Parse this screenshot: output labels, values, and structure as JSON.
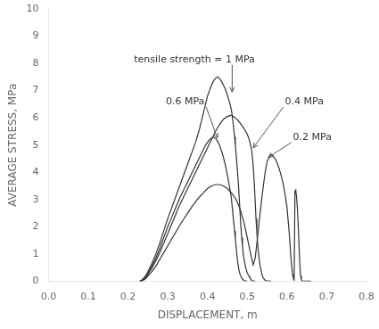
{
  "chart_data": {
    "type": "line",
    "xlabel": "DISPLACEMENT, m",
    "ylabel": "AVERAGE STRESS, MPa",
    "xlim": [
      0.0,
      0.8
    ],
    "ylim": [
      0.0,
      10.0
    ],
    "xticks": [
      {
        "value": 0.0,
        "label": "0.0"
      },
      0.1,
      0.2,
      0.3,
      0.4,
      0.5,
      0.6,
      0.7,
      0.8
    ],
    "yticks": [
      0,
      1,
      2,
      3,
      4,
      5,
      6,
      7,
      8,
      9,
      10
    ],
    "grid": false,
    "series": [
      {
        "color": "#333333",
        "x": [
          0.23,
          0.235,
          0.24,
          0.245,
          0.25,
          0.26,
          0.27,
          0.28,
          0.29,
          0.3,
          0.31,
          0.32,
          0.33,
          0.34,
          0.35,
          0.36,
          0.37,
          0.375,
          0.38,
          0.385,
          0.39,
          0.395,
          0.4,
          0.405,
          0.41,
          0.415,
          0.42,
          0.425,
          0.43,
          0.435,
          0.44,
          0.445,
          0.455,
          0.46,
          0.462,
          0.464,
          0.466,
          0.468,
          0.47,
          0.472,
          0.474,
          0.476,
          0.478,
          0.48,
          0.482,
          0.484,
          0.486,
          0.488,
          0.49,
          0.492,
          0.494,
          0.496,
          0.498,
          0.5,
          0.502,
          0.504,
          0.506,
          0.508,
          0.51,
          0.512,
          0.514,
          0.516,
          0.518,
          0.52
        ],
        "values": [
          0.0,
          0.05,
          0.12,
          0.22,
          0.35,
          0.65,
          1.0,
          1.4,
          1.85,
          2.3,
          2.7,
          3.1,
          3.5,
          3.9,
          4.3,
          4.7,
          5.1,
          5.35,
          5.6,
          5.9,
          6.2,
          6.5,
          6.8,
          7.0,
          7.2,
          7.35,
          7.45,
          7.5,
          7.45,
          7.35,
          7.2,
          7.05,
          6.6,
          6.3,
          6.1,
          5.85,
          5.6,
          5.3,
          5.0,
          4.65,
          4.3,
          3.9,
          3.5,
          3.0,
          2.5,
          2.0,
          1.6,
          1.3,
          1.0,
          0.8,
          0.65,
          0.5,
          0.4,
          0.3,
          0.25,
          0.2,
          0.15,
          0.1,
          0.05,
          0.02,
          0.01,
          0.005,
          0.002,
          0.0
        ]
      },
      {
        "color": "#333333",
        "x": [
          0.23,
          0.235,
          0.24,
          0.245,
          0.25,
          0.26,
          0.27,
          0.28,
          0.29,
          0.3,
          0.31,
          0.32,
          0.33,
          0.34,
          0.35,
          0.36,
          0.37,
          0.375,
          0.38,
          0.385,
          0.39,
          0.395,
          0.4,
          0.405,
          0.41,
          0.415,
          0.42,
          0.425,
          0.43,
          0.435,
          0.44,
          0.445,
          0.45,
          0.455,
          0.46,
          0.462,
          0.464,
          0.466,
          0.468,
          0.47,
          0.472,
          0.474,
          0.476,
          0.478,
          0.48,
          0.482,
          0.484,
          0.486,
          0.488,
          0.49,
          0.492,
          0.494,
          0.496,
          0.498,
          0.5
        ],
        "values": [
          0.0,
          0.04,
          0.1,
          0.18,
          0.3,
          0.55,
          0.85,
          1.2,
          1.6,
          2.0,
          2.35,
          2.7,
          3.05,
          3.35,
          3.65,
          3.95,
          4.25,
          4.4,
          4.55,
          4.7,
          4.85,
          5.0,
          5.1,
          5.2,
          5.25,
          5.3,
          5.25,
          5.15,
          5.0,
          4.8,
          4.55,
          4.25,
          3.9,
          3.5,
          3.05,
          2.75,
          2.45,
          2.15,
          1.85,
          1.55,
          1.25,
          0.95,
          0.7,
          0.5,
          0.35,
          0.25,
          0.18,
          0.12,
          0.08,
          0.05,
          0.03,
          0.01,
          0.005,
          0.002,
          0.0
        ]
      },
      {
        "color": "#333333",
        "x": [
          0.23,
          0.235,
          0.24,
          0.245,
          0.25,
          0.26,
          0.27,
          0.28,
          0.29,
          0.3,
          0.31,
          0.32,
          0.33,
          0.34,
          0.35,
          0.36,
          0.37,
          0.375,
          0.38,
          0.39,
          0.4,
          0.41,
          0.42,
          0.43,
          0.44,
          0.45,
          0.46,
          0.47,
          0.48,
          0.49,
          0.5,
          0.505,
          0.51,
          0.512,
          0.514,
          0.516,
          0.518,
          0.52,
          0.522,
          0.524,
          0.526,
          0.528,
          0.53,
          0.532,
          0.534,
          0.536,
          0.538,
          0.54,
          0.542,
          0.544,
          0.546,
          0.548,
          0.55,
          0.552,
          0.554,
          0.556,
          0.558,
          0.56
        ],
        "values": [
          0.0,
          0.03,
          0.08,
          0.15,
          0.25,
          0.48,
          0.75,
          1.05,
          1.4,
          1.75,
          2.1,
          2.45,
          2.8,
          3.1,
          3.4,
          3.7,
          4.0,
          4.15,
          4.3,
          4.6,
          4.9,
          5.2,
          5.5,
          5.75,
          5.95,
          6.05,
          6.1,
          6.0,
          5.85,
          5.65,
          5.4,
          5.2,
          4.9,
          4.7,
          4.4,
          4.0,
          3.5,
          2.9,
          2.3,
          1.8,
          1.4,
          1.1,
          0.8,
          0.6,
          0.45,
          0.3,
          0.2,
          0.12,
          0.08,
          0.05,
          0.03,
          0.02,
          0.01,
          0.008,
          0.005,
          0.002,
          0.001,
          0.0
        ]
      },
      {
        "color": "#333333",
        "x": [
          0.23,
          0.235,
          0.24,
          0.245,
          0.25,
          0.26,
          0.27,
          0.28,
          0.29,
          0.3,
          0.31,
          0.32,
          0.33,
          0.34,
          0.35,
          0.36,
          0.37,
          0.38,
          0.39,
          0.4,
          0.41,
          0.42,
          0.43,
          0.44,
          0.45,
          0.46,
          0.47,
          0.475,
          0.48,
          0.485,
          0.49,
          0.495,
          0.5,
          0.505,
          0.51,
          0.515,
          0.52,
          0.525,
          0.53,
          0.535,
          0.54,
          0.545,
          0.55,
          0.555,
          0.56,
          0.565,
          0.57,
          0.575,
          0.58,
          0.585,
          0.59,
          0.595,
          0.6,
          0.603,
          0.606,
          0.608,
          0.61,
          0.612,
          0.614,
          0.616,
          0.618,
          0.62,
          0.622,
          0.624,
          0.626,
          0.628,
          0.63,
          0.632,
          0.634,
          0.636,
          0.638,
          0.64,
          0.645,
          0.65,
          0.655,
          0.66
        ],
        "values": [
          0.0,
          0.02,
          0.05,
          0.1,
          0.18,
          0.35,
          0.55,
          0.8,
          1.05,
          1.3,
          1.55,
          1.8,
          2.05,
          2.28,
          2.5,
          2.72,
          2.92,
          3.1,
          3.25,
          3.4,
          3.5,
          3.55,
          3.55,
          3.5,
          3.4,
          3.25,
          3.05,
          2.9,
          2.72,
          2.5,
          2.25,
          1.95,
          1.6,
          1.25,
          0.9,
          0.6,
          0.85,
          1.5,
          2.2,
          2.85,
          3.45,
          4.0,
          4.4,
          4.55,
          4.65,
          4.6,
          4.5,
          4.35,
          4.15,
          3.9,
          3.6,
          3.2,
          2.7,
          2.2,
          1.7,
          1.25,
          0.85,
          0.5,
          0.25,
          0.1,
          0.05,
          3.3,
          3.35,
          3.1,
          2.7,
          2.1,
          1.4,
          0.7,
          0.2,
          0.05,
          0.01,
          0.0,
          0.0,
          0.0,
          0.0,
          0.0
        ]
      }
    ],
    "annotations": [
      {
        "text": "tensile strength = 1 MPa",
        "x": 0.462,
        "y": 6.95,
        "text_x": 0.215,
        "text_y": 8.05,
        "color": "#333333"
      },
      {
        "text": "0.6 MPa",
        "x": 0.425,
        "y": 5.25,
        "text_x": 0.295,
        "text_y": 6.5,
        "color": "#333333"
      },
      {
        "text": "0.4 MPa",
        "x": 0.515,
        "y": 4.9,
        "text_x": 0.595,
        "text_y": 6.5,
        "color": "#333333"
      },
      {
        "text": "0.2 MPa",
        "x": 0.553,
        "y": 4.55,
        "text_x": 0.615,
        "text_y": 5.2,
        "color": "#333333"
      }
    ]
  }
}
